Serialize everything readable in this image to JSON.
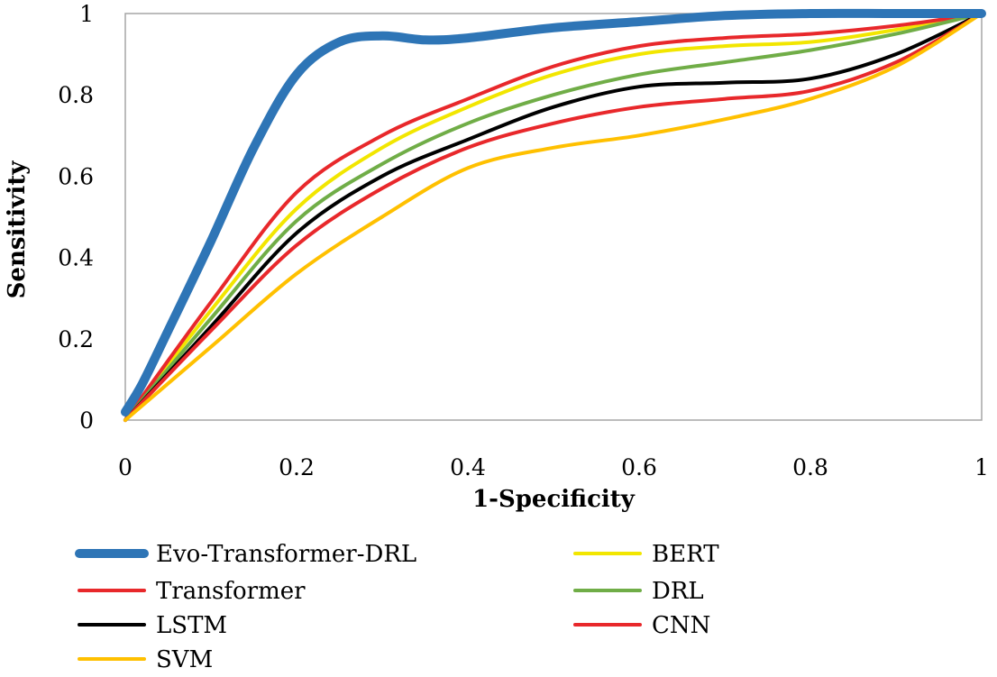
{
  "chart_data": {
    "type": "line",
    "title": "",
    "xlabel": "1-Specificity",
    "ylabel": "Sensitivity",
    "xlim": [
      0,
      1
    ],
    "ylim": [
      0,
      1
    ],
    "xticks": [
      0,
      0.2,
      0.4,
      0.6,
      0.8,
      1
    ],
    "yticks": [
      0,
      0.2,
      0.4,
      0.6,
      0.8,
      1
    ],
    "xtick_labels": [
      "0",
      "0.2",
      "0.4",
      "0.6",
      "0.8",
      "1"
    ],
    "ytick_labels": [
      "0",
      "0.2",
      "0.4",
      "0.6",
      "0.8",
      "1"
    ],
    "grid": false,
    "legend_position": "bottom",
    "series": [
      {
        "name": "Evo-Transformer-DRL",
        "color": "#2E75B6",
        "width": "thick",
        "x": [
          0,
          0.02,
          0.05,
          0.1,
          0.15,
          0.2,
          0.25,
          0.3,
          0.35,
          0.4,
          0.5,
          0.6,
          0.7,
          0.8,
          0.9,
          1
        ],
        "y": [
          0.02,
          0.09,
          0.22,
          0.44,
          0.67,
          0.85,
          0.93,
          0.945,
          0.935,
          0.94,
          0.965,
          0.98,
          0.995,
          1.0,
          1.0,
          1.0
        ]
      },
      {
        "name": "BERT",
        "color": "#F2E600",
        "width": "medium",
        "x": [
          0,
          0.1,
          0.2,
          0.3,
          0.4,
          0.5,
          0.6,
          0.7,
          0.8,
          0.9,
          1
        ],
        "y": [
          0,
          0.27,
          0.52,
          0.67,
          0.77,
          0.85,
          0.9,
          0.92,
          0.93,
          0.96,
          1.0
        ]
      },
      {
        "name": "Transformer",
        "color": "#E8282B",
        "width": "medium",
        "x": [
          0,
          0.1,
          0.2,
          0.3,
          0.4,
          0.5,
          0.6,
          0.7,
          0.8,
          0.9,
          1
        ],
        "y": [
          0,
          0.29,
          0.56,
          0.7,
          0.79,
          0.87,
          0.92,
          0.94,
          0.95,
          0.97,
          1.0
        ]
      },
      {
        "name": "DRL",
        "color": "#70AD47",
        "width": "medium",
        "x": [
          0,
          0.1,
          0.2,
          0.3,
          0.4,
          0.5,
          0.6,
          0.7,
          0.8,
          0.9,
          1
        ],
        "y": [
          0,
          0.25,
          0.49,
          0.63,
          0.73,
          0.8,
          0.85,
          0.88,
          0.91,
          0.95,
          1.0
        ]
      },
      {
        "name": "LSTM",
        "color": "#000000",
        "width": "medium",
        "x": [
          0,
          0.1,
          0.2,
          0.3,
          0.4,
          0.5,
          0.6,
          0.7,
          0.8,
          0.9,
          1
        ],
        "y": [
          0,
          0.23,
          0.46,
          0.6,
          0.69,
          0.77,
          0.82,
          0.83,
          0.84,
          0.9,
          1.0
        ]
      },
      {
        "name": "CNN",
        "color": "#E8282B",
        "width": "medium",
        "x": [
          0,
          0.1,
          0.2,
          0.3,
          0.4,
          0.5,
          0.6,
          0.7,
          0.8,
          0.9,
          1
        ],
        "y": [
          0,
          0.22,
          0.43,
          0.57,
          0.67,
          0.73,
          0.77,
          0.79,
          0.81,
          0.88,
          1.0
        ]
      },
      {
        "name": "SVM",
        "color": "#FFC000",
        "width": "medium",
        "x": [
          0,
          0.1,
          0.2,
          0.3,
          0.4,
          0.5,
          0.6,
          0.7,
          0.8,
          0.9,
          1
        ],
        "y": [
          0,
          0.18,
          0.36,
          0.5,
          0.62,
          0.67,
          0.7,
          0.74,
          0.79,
          0.87,
          1.0
        ]
      }
    ]
  }
}
